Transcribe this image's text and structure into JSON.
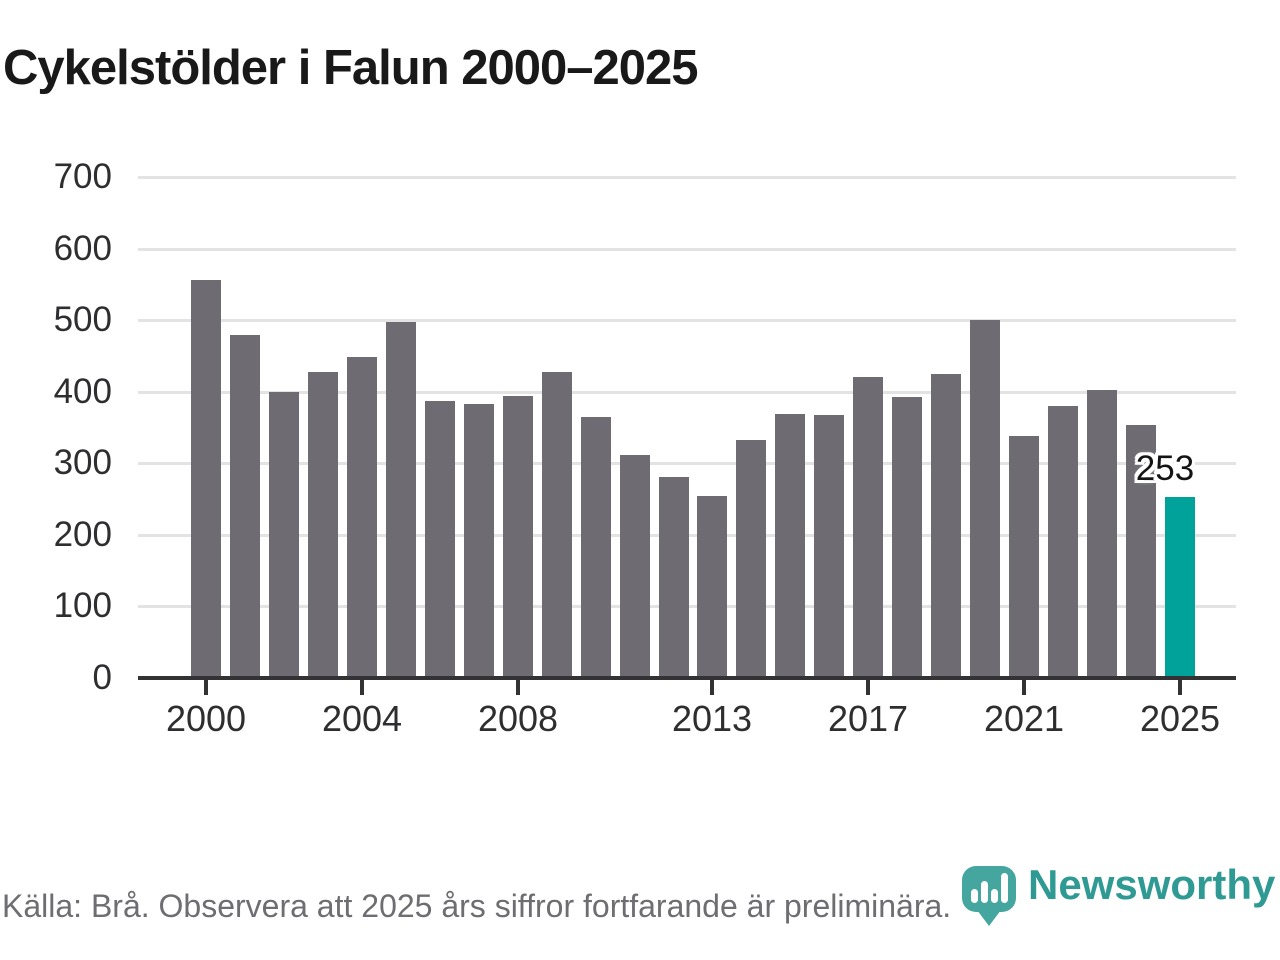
{
  "title": "Cykelstölder i Falun 2000–2025",
  "chart_data": {
    "type": "bar",
    "title": "Cykelstölder i Falun 2000–2025",
    "categories": [
      2000,
      2001,
      2002,
      2003,
      2004,
      2005,
      2006,
      2007,
      2008,
      2009,
      2010,
      2011,
      2012,
      2013,
      2014,
      2015,
      2016,
      2017,
      2018,
      2019,
      2020,
      2021,
      2022,
      2023,
      2024,
      2025
    ],
    "values": [
      556,
      479,
      400,
      427,
      448,
      497,
      387,
      383,
      394,
      427,
      364,
      311,
      281,
      254,
      332,
      369,
      368,
      421,
      393,
      425,
      500,
      338,
      380,
      402,
      354,
      253
    ],
    "highlight": {
      "category": 2025,
      "value": 253,
      "label": "253"
    },
    "ylim": [
      0,
      700
    ],
    "yticks": [
      0,
      100,
      200,
      300,
      400,
      500,
      600,
      700
    ],
    "xticks": [
      2000,
      2004,
      2008,
      2013,
      2017,
      2021,
      2025
    ],
    "grid": "horizontal",
    "legend": "none",
    "colors": {
      "bar": "#6e6b72",
      "highlight": "#00a29a",
      "grid": "#e3e3e3",
      "axis": "#333336",
      "tick_label": "#2e2e31"
    }
  },
  "footer": {
    "source_note": "Källa: Brå. Observera att 2025 års siffror fortfarande är preliminära."
  },
  "branding": {
    "name": "Newsworthy",
    "icon": "newsworthy-logo",
    "icon_color": "#45a6a0",
    "text_color": "#2f9a93"
  }
}
